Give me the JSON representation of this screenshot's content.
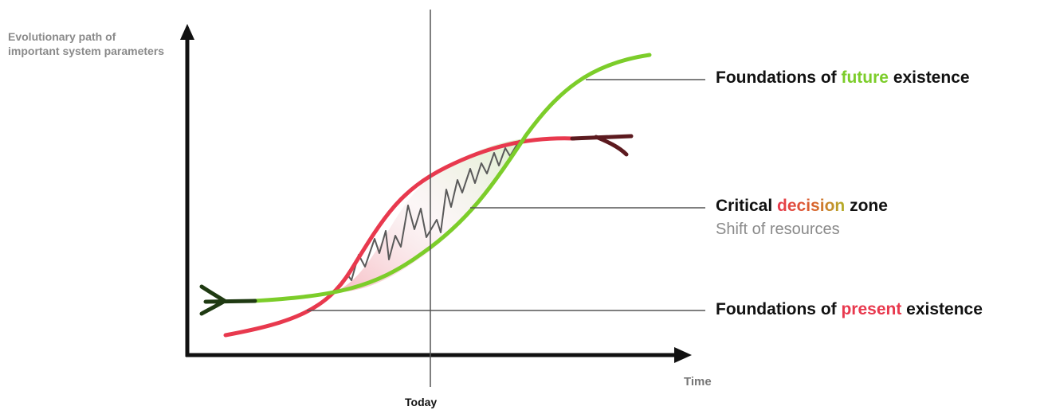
{
  "y_axis_label": "Evolutionary path of important system parameters",
  "x_axis_label": "Time",
  "today_label": "Today",
  "callouts": {
    "future": {
      "pre": "Foundations of ",
      "highlight": "future",
      "post": " existence"
    },
    "critical": {
      "pre": "Critical ",
      "highlight": "decision",
      "post": " zone",
      "subtitle": "Shift of resources"
    },
    "present": {
      "pre": "Foundations of ",
      "highlight": "present",
      "post": " existence"
    }
  },
  "colors": {
    "future_curve": "#7ccd2a",
    "present_curve": "#e8394e",
    "present_tail": "#5c1a1f",
    "future_tail": "#1f3a12",
    "axis": "#111111",
    "leader_line": "#555555"
  }
}
